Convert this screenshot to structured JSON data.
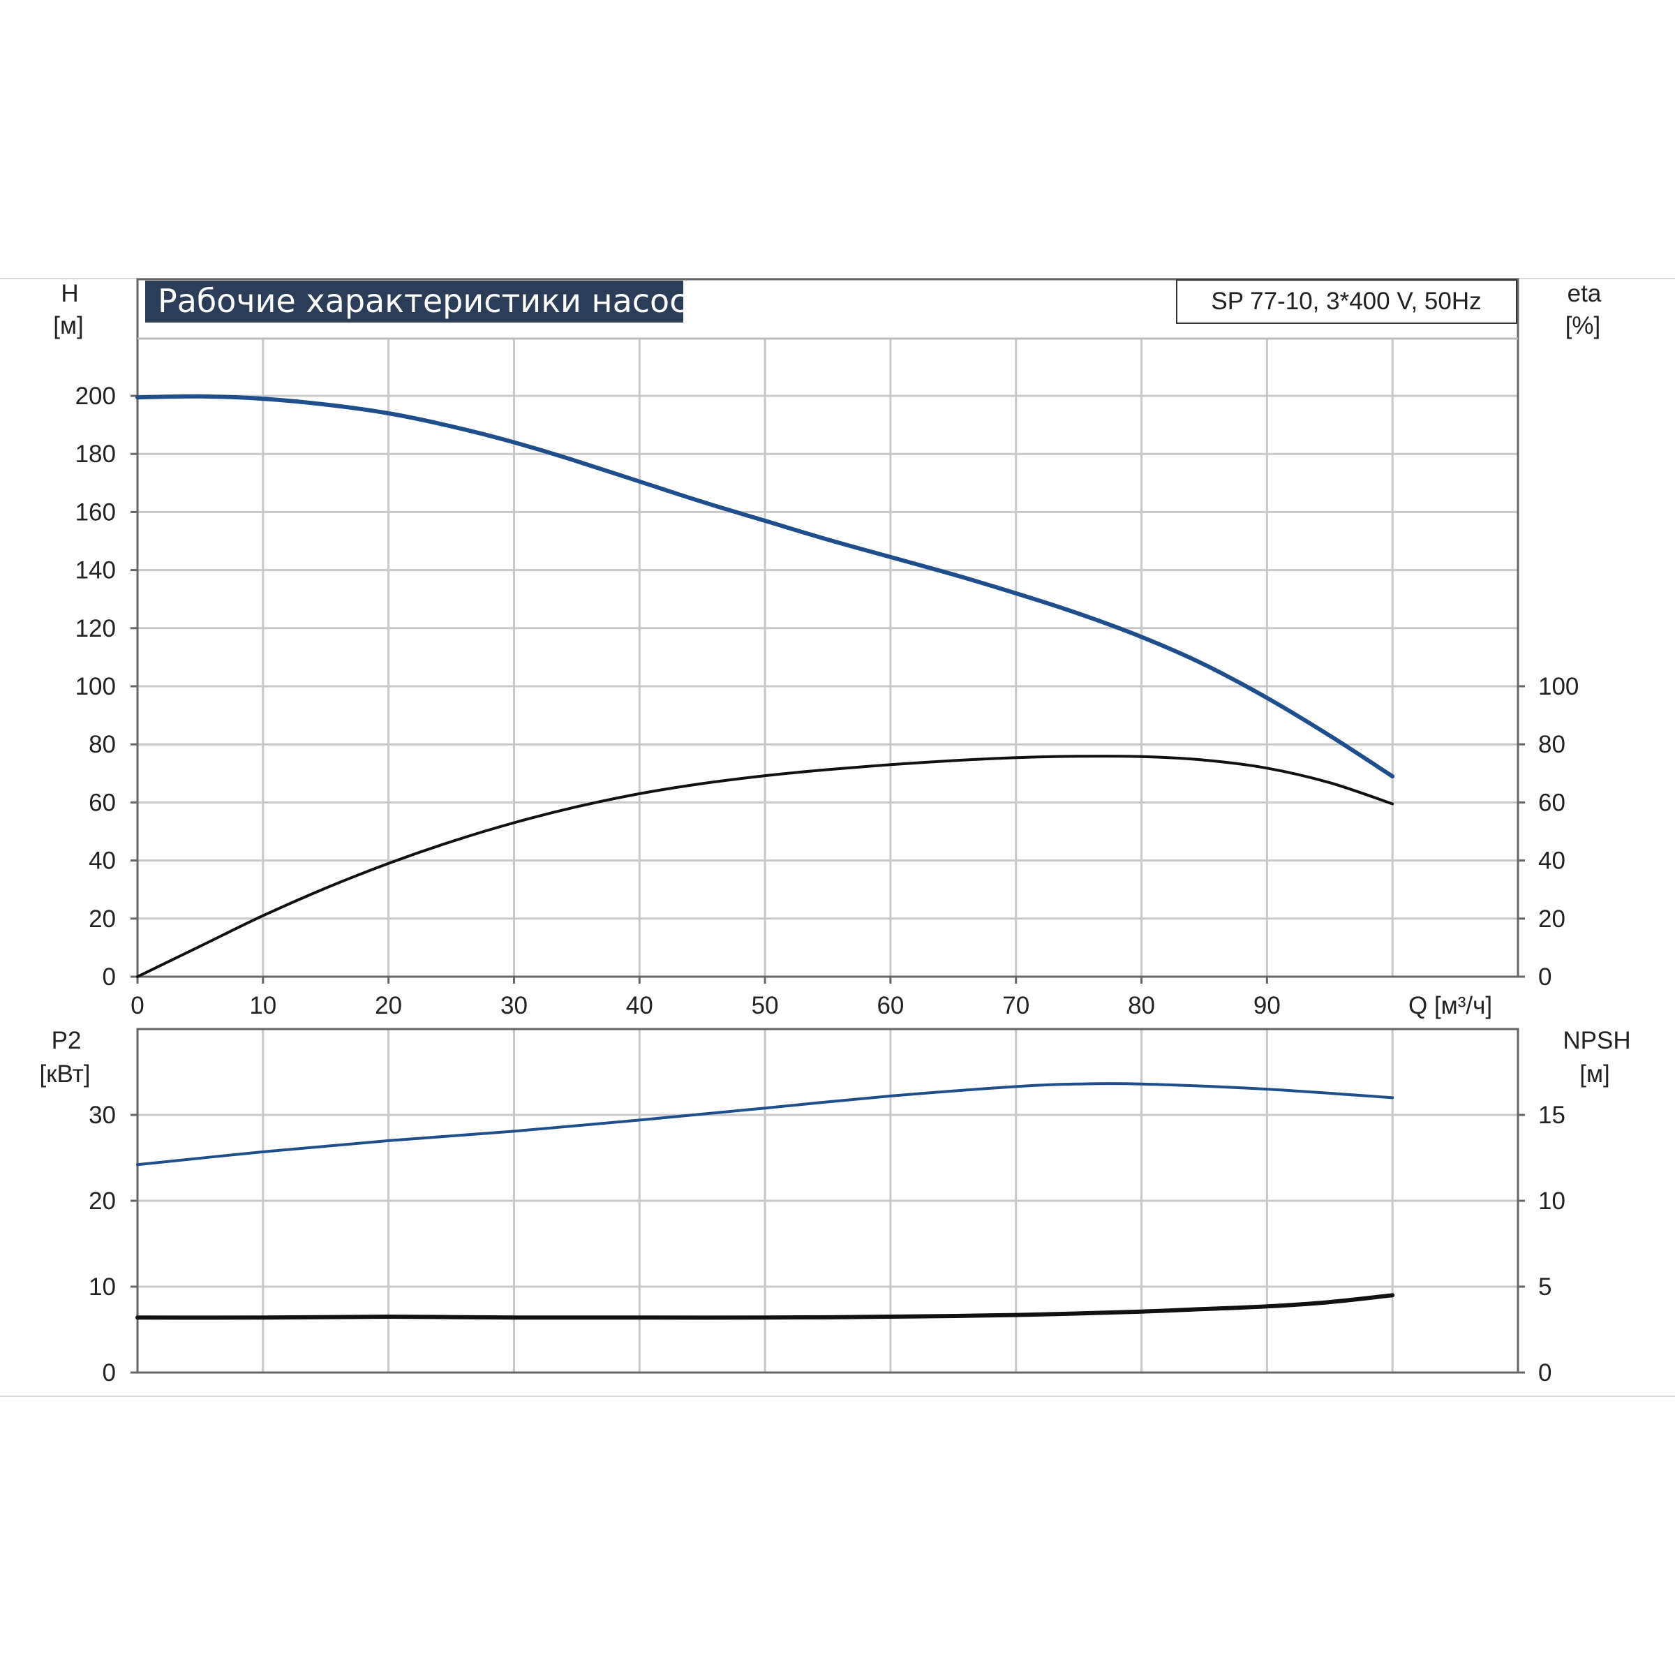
{
  "chart_data": [
    {
      "type": "line",
      "title": "Рабочие характеристики насоса",
      "model_label": "SP 77-10, 3*400 V, 50Hz",
      "xlabel": "Q [м³/ч]",
      "xlim": [
        0,
        110
      ],
      "xticks": [
        "0",
        "10",
        "20",
        "30",
        "40",
        "50",
        "60",
        "70",
        "80",
        "90"
      ],
      "y_left": {
        "label_line1": "H",
        "label_line2": "[м]",
        "lim": [
          0,
          200
        ],
        "ticks": [
          "0",
          "20",
          "40",
          "60",
          "80",
          "100",
          "120",
          "140",
          "160",
          "180",
          "200"
        ]
      },
      "y_right": {
        "label_line1": "eta",
        "label_line2": "[%]",
        "lim": [
          0,
          100
        ],
        "ticks": [
          "0",
          "20",
          "40",
          "60",
          "80",
          "100"
        ]
      },
      "grid": true,
      "series": [
        {
          "axis": "left",
          "color": "#1f4e8c",
          "x": [
            0,
            5,
            10,
            15,
            20,
            25,
            30,
            35,
            40,
            45,
            50,
            55,
            60,
            65,
            70,
            75,
            80,
            85,
            90,
            95,
            100
          ],
          "y": [
            199.5,
            199.8,
            199,
            197,
            194,
            189.5,
            184,
            177.5,
            170.5,
            163.5,
            157,
            150.5,
            144.5,
            138.5,
            132,
            125,
            117,
            107.5,
            96,
            83,
            69
          ]
        },
        {
          "axis": "right",
          "color": "#111111",
          "x": [
            0,
            5,
            10,
            15,
            20,
            25,
            30,
            35,
            40,
            45,
            50,
            55,
            60,
            65,
            70,
            75,
            80,
            85,
            90,
            95,
            100
          ],
          "y": [
            0,
            10.5,
            21,
            30.5,
            39,
            46.5,
            53,
            58.5,
            63,
            66.5,
            69.2,
            71.3,
            73,
            74.4,
            75.4,
            75.9,
            75.8,
            74.6,
            71.8,
            66.8,
            59.5
          ]
        }
      ]
    },
    {
      "type": "line",
      "xlim": [
        0,
        110
      ],
      "y_left": {
        "label_line1": "P2",
        "label_line2": "[кВт]",
        "lim": [
          0,
          40
        ],
        "ticks": [
          "0",
          "10",
          "20",
          "30"
        ]
      },
      "y_right": {
        "label_line1": "NPSH",
        "label_line2": "[м]",
        "lim": [
          0,
          20
        ],
        "ticks": [
          "0",
          "5",
          "10",
          "15"
        ]
      },
      "grid": true,
      "series": [
        {
          "axis": "left",
          "color": "#1f4e8c",
          "x": [
            0,
            10,
            20,
            30,
            40,
            50,
            60,
            70,
            75,
            80,
            90,
            100
          ],
          "y": [
            24.2,
            25.7,
            27,
            28.1,
            29.4,
            30.8,
            32.2,
            33.3,
            33.6,
            33.6,
            33,
            32
          ]
        },
        {
          "axis": "right",
          "color": "#111111",
          "x": [
            0,
            10,
            20,
            30,
            40,
            50,
            60,
            70,
            80,
            85,
            90,
            95,
            100
          ],
          "y": [
            3.2,
            3.2,
            3.25,
            3.2,
            3.2,
            3.2,
            3.25,
            3.35,
            3.55,
            3.7,
            3.85,
            4.1,
            4.5
          ]
        }
      ]
    }
  ]
}
